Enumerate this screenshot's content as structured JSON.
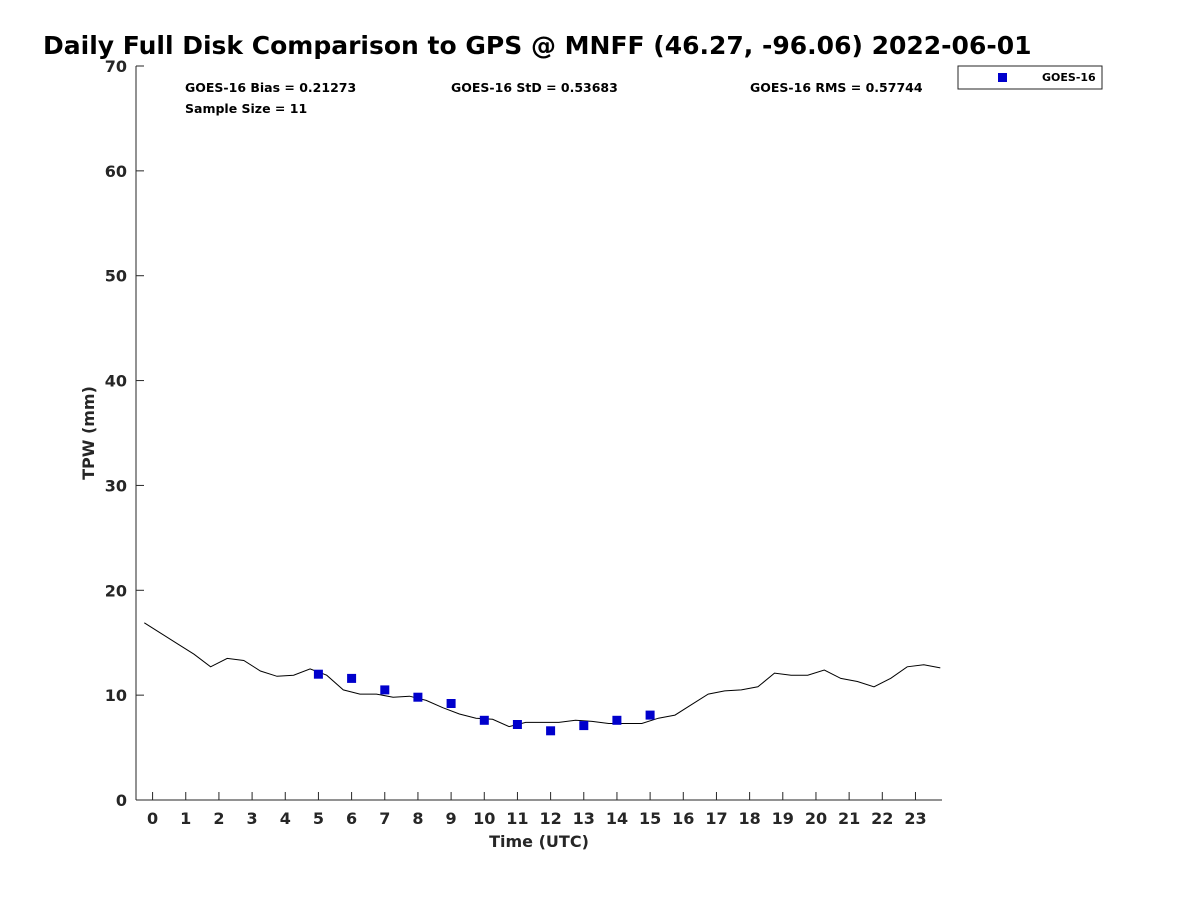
{
  "chart_data": {
    "type": "line",
    "title": "Daily Full Disk Comparison to GPS @ MNFF (46.27, -96.06) 2022-06-01",
    "xlabel": "Time (UTC)",
    "ylabel": "TPW (mm)",
    "xlim": [
      -0.5,
      23.8
    ],
    "ylim": [
      0,
      70
    ],
    "x_ticks": [
      "0",
      "1",
      "2",
      "3",
      "4",
      "5",
      "6",
      "7",
      "8",
      "9",
      "10",
      "11",
      "12",
      "13",
      "14",
      "15",
      "16",
      "17",
      "18",
      "19",
      "20",
      "21",
      "22",
      "23"
    ],
    "y_ticks": [
      "0",
      "10",
      "20",
      "30",
      "40",
      "50",
      "60",
      "70"
    ],
    "grid": false,
    "legend_position": "top-right (outside plot)",
    "stats": {
      "bias": "GOES-16 Bias = 0.21273",
      "std": "GOES-16 StD = 0.53683",
      "rms": "GOES-16 RMS = 0.57744",
      "sample_size": "Sample Size = 11"
    },
    "legend": [
      {
        "label": "GOES-16",
        "color": "#0000cc",
        "marker": "square"
      }
    ],
    "series": [
      {
        "kind": "line",
        "color": "#000000",
        "x": [
          -0.25,
          0.25,
          0.75,
          1.25,
          1.75,
          2.25,
          2.75,
          3.25,
          3.75,
          4.25,
          4.75,
          5.25,
          5.75,
          6.25,
          6.75,
          7.25,
          7.75,
          8.25,
          8.75,
          9.25,
          9.75,
          10.25,
          10.75,
          11.25,
          11.75,
          12.25,
          12.75,
          13.25,
          13.75,
          14.25,
          14.75,
          15.25,
          15.75,
          16.25,
          16.75,
          17.25,
          17.75,
          18.25,
          18.75,
          19.25,
          19.75,
          20.25,
          20.75,
          21.25,
          21.75,
          22.25,
          22.75,
          23.25,
          23.75
        ],
        "y": [
          16.9,
          15.9,
          14.9,
          13.9,
          12.7,
          13.5,
          13.3,
          12.3,
          11.8,
          11.9,
          12.5,
          11.9,
          10.5,
          10.1,
          10.1,
          9.8,
          9.9,
          9.5,
          8.8,
          8.2,
          7.8,
          7.7,
          7.0,
          7.4,
          7.4,
          7.4,
          7.6,
          7.5,
          7.3,
          7.3,
          7.3,
          7.8,
          8.1,
          9.1,
          10.1,
          10.4,
          10.5,
          10.8,
          12.1,
          11.9,
          11.9,
          12.4,
          11.6,
          11.3,
          10.8,
          11.6,
          12.7,
          12.9,
          12.6
        ]
      },
      {
        "kind": "scatter",
        "name": "GOES-16",
        "color": "#0000cc",
        "x": [
          5,
          6,
          7,
          8,
          9,
          10,
          11,
          12,
          13,
          14,
          15
        ],
        "y": [
          12.0,
          11.6,
          10.5,
          9.8,
          9.2,
          7.6,
          7.2,
          6.6,
          7.1,
          7.6,
          8.1
        ]
      }
    ]
  }
}
